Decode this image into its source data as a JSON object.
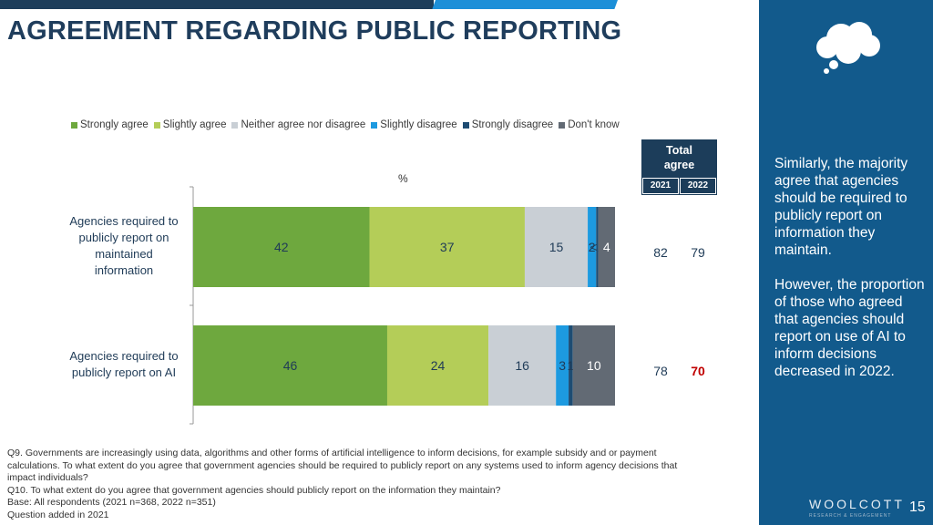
{
  "title": "AGREEMENT REGARDING PUBLIC REPORTING",
  "legend": [
    {
      "label": "Strongly agree",
      "color": "#6ea83e"
    },
    {
      "label": "Slightly agree",
      "color": "#b4cd58"
    },
    {
      "label": "Neither agree nor disagree",
      "color": "#c9cfd5"
    },
    {
      "label": "Slightly disagree",
      "color": "#1d9ae0"
    },
    {
      "label": "Strongly disagree",
      "color": "#1e4c72"
    },
    {
      "label": "Don't know",
      "color": "#626a74"
    }
  ],
  "percent_label": "%",
  "total_agree": {
    "label": "Total agree",
    "years": [
      "2021",
      "2022"
    ]
  },
  "chart_data": {
    "type": "bar",
    "orientation": "horizontal",
    "stacked": true,
    "title": "AGREEMENT REGARDING PUBLIC REPORTING",
    "xlabel": "%",
    "categories": [
      "Agencies required to publicly report on maintained information",
      "Agencies required to publicly report on AI"
    ],
    "category_lines": [
      [
        "Agencies required to",
        "publicly report on",
        "maintained",
        "information"
      ],
      [
        "Agencies required to",
        "publicly report on AI"
      ]
    ],
    "series": [
      {
        "name": "Strongly agree",
        "values": [
          42,
          46
        ],
        "labels": [
          "42",
          "46"
        ]
      },
      {
        "name": "Slightly agree",
        "values": [
          37,
          24
        ],
        "labels": [
          "37",
          "24"
        ]
      },
      {
        "name": "Neither agree nor disagree",
        "values": [
          15,
          16
        ],
        "labels": [
          "15",
          "16"
        ]
      },
      {
        "name": "Slightly disagree",
        "values": [
          2,
          3
        ],
        "labels": [
          "2",
          "3"
        ]
      },
      {
        "name": "Strongly disagree",
        "values": [
          0.5,
          1
        ],
        "labels": [
          "<1",
          "1"
        ]
      },
      {
        "name": "Don't know",
        "values": [
          4,
          10
        ],
        "labels": [
          "4",
          "10"
        ]
      }
    ],
    "total_agree": [
      {
        "y2021": "82",
        "y2022": "79",
        "highlight2022": false
      },
      {
        "y2021": "78",
        "y2022": "70",
        "highlight2022": true
      }
    ],
    "xlim": [
      0,
      100
    ]
  },
  "sidebar": {
    "paragraphs": [
      "Similarly, the majority agree that agencies should be required to publicly report on information they maintain.",
      "However, the proportion of those who agreed that agencies should report on use of AI to inform decisions decreased in 2022."
    ]
  },
  "footnotes": [
    "Q9. Governments are increasingly using data, algorithms and other forms of artificial intelligence to inform decisions, for example subsidy and or payment calculations. To what extent do you agree that government agencies should be required to publicly report on any systems used to inform agency decisions that impact individuals?",
    "Q10. To what extent do you agree that government agencies should publicly report on the information they maintain?",
    "Base: All respondents (2021 n=368, 2022 n=351)",
    "Question added in 2021"
  ],
  "logo": {
    "name": "WOOLCOTT",
    "tagline": "RESEARCH & ENGAGEMENT"
  },
  "page_number": "15",
  "colors": {
    "highlight": "#c00000",
    "sidebar": "#125a8c",
    "title": "#1f3d5c"
  }
}
